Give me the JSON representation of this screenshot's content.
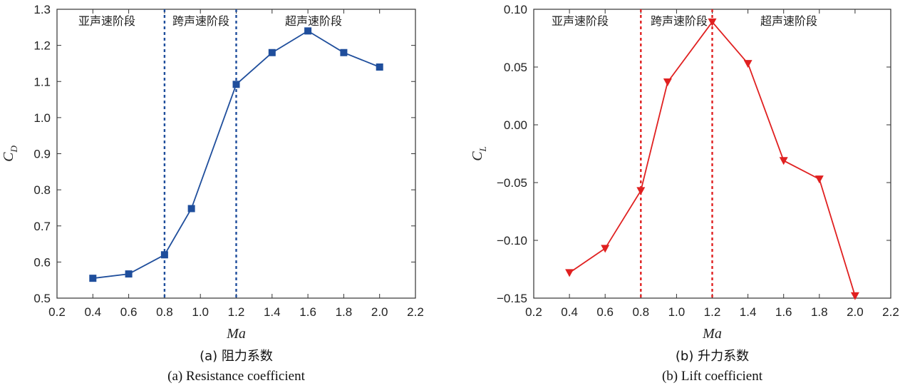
{
  "chart_data": [
    {
      "type": "line",
      "caption_cn": "(a) 阻力系数",
      "caption_en": "(a) Resistance coefficient",
      "xlabel": "Ma",
      "ylabel_main": "C",
      "ylabel_sub": "D",
      "xlim": [
        0.2,
        2.2
      ],
      "ylim": [
        0.5,
        1.3
      ],
      "xticks": [
        "0.2",
        "0.4",
        "0.6",
        "0.8",
        "1.0",
        "1.2",
        "1.4",
        "1.6",
        "1.8",
        "2.0",
        "2.2"
      ],
      "yticks": [
        "0.5",
        "0.6",
        "0.7",
        "0.8",
        "0.9",
        "1.0",
        "1.1",
        "1.2",
        "1.3"
      ],
      "grid": false,
      "marker": "square",
      "color": "#1f4e9c",
      "regions": [
        "亚声速阶段",
        "跨声速阶段",
        "超声速阶段"
      ],
      "dividers": [
        0.8,
        1.2
      ],
      "series": [
        {
          "x": [
            0.4,
            0.6,
            0.8,
            0.95,
            1.2,
            1.4,
            1.6,
            1.8,
            2.0
          ],
          "values": [
            0.555,
            0.567,
            0.62,
            0.748,
            1.092,
            1.18,
            1.24,
            1.18,
            1.14
          ]
        }
      ]
    },
    {
      "type": "line",
      "caption_cn": "(b) 升力系数",
      "caption_en": "(b) Lift coefficient",
      "xlabel": "Ma",
      "ylabel_main": "C",
      "ylabel_sub": "L",
      "xlim": [
        0.2,
        2.2
      ],
      "ylim": [
        -0.15,
        0.1
      ],
      "xticks": [
        "0.2",
        "0.4",
        "0.6",
        "0.8",
        "1.0",
        "1.2",
        "1.4",
        "1.6",
        "1.8",
        "2.0",
        "2.2"
      ],
      "yticks": [
        "−0.15",
        "−0.10",
        "−0.05",
        "0.00",
        "0.05",
        "0.10"
      ],
      "grid": false,
      "marker": "triangle-down",
      "color": "#e02020",
      "regions": [
        "亚声速阶段",
        "跨声速阶段",
        "超声速阶段"
      ],
      "dividers": [
        0.8,
        1.2
      ],
      "series": [
        {
          "x": [
            0.4,
            0.6,
            0.8,
            0.95,
            1.2,
            1.4,
            1.6,
            1.8,
            2.0
          ],
          "values": [
            -0.128,
            -0.107,
            -0.057,
            0.037,
            0.089,
            0.053,
            -0.031,
            -0.047,
            -0.148
          ]
        }
      ]
    }
  ]
}
